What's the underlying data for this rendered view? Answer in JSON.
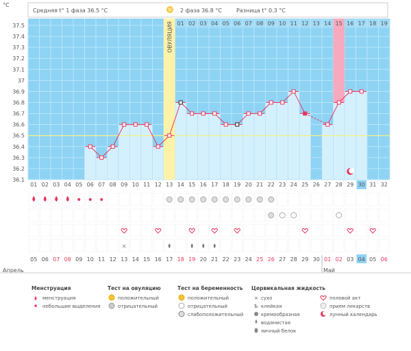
{
  "header": {
    "unit": "°C",
    "phase1": "Средняя t° 1 фаза 36.5 °C",
    "phase2": "2 фаза 36.8 °C",
    "diff": "Разница t° 0.3 °C"
  },
  "ovulation_label": "ОВУЛЯЦИЯ",
  "chart_data": {
    "type": "line",
    "ylim": [
      36.1,
      37.5
    ],
    "yticks": [
      "37.5",
      "37.4",
      "37.3",
      "37.2",
      "37.1",
      "37",
      "36.9",
      "36.8",
      "36.7",
      "36.6",
      "36.5",
      "36.4",
      "36.3",
      "36.2",
      "36.1"
    ],
    "coverline": 36.5,
    "cycle_days": [
      "01",
      "02",
      "03",
      "04",
      "05",
      "06",
      "07",
      "08",
      "09",
      "10",
      "11",
      "12",
      "13",
      "14",
      "15",
      "16",
      "17",
      "18",
      "19",
      "20",
      "21",
      "22",
      "23",
      "24",
      "25",
      "26",
      "27",
      "28",
      "29",
      "30",
      "31",
      "32"
    ],
    "top_days": [
      "01",
      "02",
      "03",
      "04",
      "05",
      "06",
      "07",
      "08",
      "09",
      "10",
      "11",
      "12",
      "13",
      "14",
      "15",
      "16",
      "17",
      "18",
      "19"
    ],
    "ovulation_day_index": 12,
    "highlight_top_index": 14,
    "highlight_cycle_index": 29,
    "series": [
      {
        "values": [
          null,
          null,
          null,
          null,
          null,
          36.4,
          36.3,
          36.4,
          36.6,
          36.6,
          36.6,
          36.4,
          36.5,
          36.8,
          36.7,
          36.7,
          36.7,
          36.6,
          36.6,
          36.7,
          36.7,
          36.8,
          36.8,
          36.9,
          36.7,
          null,
          36.6,
          36.8,
          36.9,
          36.9,
          null,
          null
        ],
        "markers": [
          null,
          null,
          null,
          null,
          null,
          "circle",
          "circle",
          "circle",
          "circle",
          "circle",
          "circle",
          "circle",
          "circle",
          "dark",
          "circle",
          "circle",
          "circle",
          "circle",
          "dark",
          "circle",
          "circle",
          "circle",
          "circle",
          "circle",
          "filled",
          null,
          "circle",
          "circle",
          "circle",
          "circle",
          null,
          null
        ],
        "dashed_segments": [
          [
            24,
            26
          ]
        ]
      }
    ],
    "calendar_dates": [
      "05",
      "06",
      "07",
      "08",
      "09",
      "10",
      "11",
      "12",
      "13",
      "14",
      "15",
      "16",
      "17",
      "18",
      "19",
      "20",
      "21",
      "22",
      "23",
      "24",
      "25",
      "26",
      "27",
      "28",
      "29",
      "30",
      "01",
      "02",
      "03",
      "04",
      "05",
      "06"
    ],
    "red_date_indices": [
      2,
      3,
      13,
      14,
      20,
      21,
      26,
      27,
      31,
      32
    ],
    "today_date_index": 29,
    "months": [
      "Апрель",
      "Май"
    ],
    "month_start_index": 26,
    "symbols": {
      "menstruation_big": [
        0,
        1,
        2,
        3
      ],
      "menstruation_small": [
        4,
        5,
        6
      ],
      "ovulation_test_negative": [
        12,
        13,
        14,
        15,
        16,
        17,
        18,
        19,
        20,
        21
      ],
      "pregnancy_test": [
        [
          21,
          "weak"
        ],
        [
          22,
          "negative"
        ],
        [
          23,
          "negative"
        ],
        [
          27,
          "negative"
        ]
      ],
      "intercourse": [
        8,
        11,
        14,
        16,
        18,
        24,
        28,
        30
      ],
      "mucus": [
        [
          8,
          "dry"
        ],
        [
          12,
          "egg"
        ],
        [
          14,
          "watery"
        ],
        [
          15,
          "watery"
        ],
        [
          16,
          "yellow"
        ]
      ],
      "lunar": [
        28
      ]
    }
  },
  "legend": [
    {
      "title": "Менструация",
      "items": [
        "менструация",
        "небольшие выделения"
      ]
    },
    {
      "title": "Тест на овуляцию",
      "items": [
        "положительный",
        "отрицательный"
      ]
    },
    {
      "title": "Тест на беременность",
      "items": [
        "положительный",
        "отрицательный",
        "слабоположительный"
      ]
    },
    {
      "title": "Цервикальная жидкость",
      "items": [
        "сухо",
        "клейкая",
        "кремообразная",
        "водянистая",
        "яичный белок"
      ]
    },
    {
      "title": "",
      "items": [
        "половой акт",
        "прием лекарств",
        "лунный календарь"
      ]
    }
  ]
}
